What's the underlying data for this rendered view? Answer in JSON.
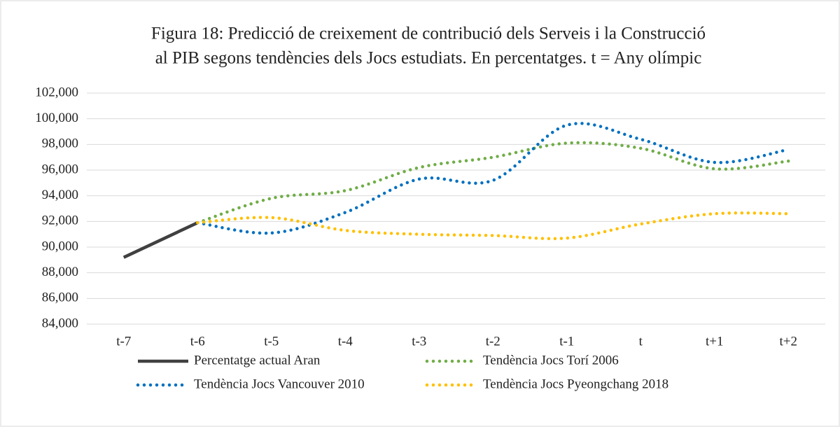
{
  "chart_data": {
    "type": "line",
    "title": [
      "Figura 18: Predicció de creixement de contribució dels Serveis i la Construcció",
      "al PIB segons tendències dels Jocs estudiats. En percentatges. t = Any olímpic"
    ],
    "categories": [
      "t-7",
      "t-6",
      "t-5",
      "t-4",
      "t-3",
      "t-2",
      "t-1",
      "t",
      "t+1",
      "t+2"
    ],
    "series": [
      {
        "name": "Percentatge actual Aran",
        "color": "#404040",
        "dotted": false,
        "values": [
          89.2,
          91.9,
          null,
          null,
          null,
          null,
          null,
          null,
          null,
          null
        ]
      },
      {
        "name": "Tendència Jocs Torí 2006",
        "color": "#70ad47",
        "dotted": true,
        "values": [
          null,
          91.9,
          93.8,
          94.4,
          96.2,
          97.0,
          98.1,
          97.7,
          96.1,
          96.7
        ]
      },
      {
        "name": "Tendència Jocs Vancouver 2010",
        "color": "#0070c0",
        "dotted": true,
        "values": [
          null,
          91.9,
          91.1,
          92.7,
          95.3,
          95.2,
          99.5,
          98.4,
          96.6,
          97.6
        ]
      },
      {
        "name": "Tendència Jocs Pyeongchang 2018",
        "color": "#ffc000",
        "dotted": true,
        "values": [
          null,
          91.9,
          92.3,
          91.3,
          91.0,
          90.9,
          90.7,
          91.8,
          92.6,
          92.6
        ]
      }
    ],
    "ylim": [
      84,
      102
    ],
    "yticks": [
      {
        "value": 84,
        "label": "84,000"
      },
      {
        "value": 86,
        "label": "86,000"
      },
      {
        "value": 88,
        "label": "88,000"
      },
      {
        "value": 90,
        "label": "90,000"
      },
      {
        "value": 92,
        "label": "92,000"
      },
      {
        "value": 94,
        "label": "94,000"
      },
      {
        "value": 96,
        "label": "96,000"
      },
      {
        "value": 98,
        "label": "98,000"
      },
      {
        "value": 100,
        "label": "100,000"
      },
      {
        "value": 102,
        "label": "102,000"
      }
    ],
    "grid": true,
    "smooth": true,
    "legend": "bottom"
  }
}
